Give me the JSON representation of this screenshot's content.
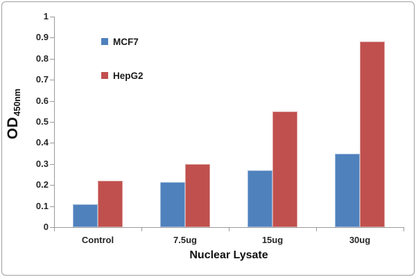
{
  "frame": {
    "background": "#ffffff",
    "border_color": "#9e9e9e"
  },
  "chart_data": {
    "type": "bar",
    "title": "",
    "xlabel": "Nuclear Lysate",
    "ylabel_main": "OD",
    "ylabel_sub": "450nm",
    "categories": [
      "Control",
      "7.5ug",
      "15ug",
      "30ug"
    ],
    "series": [
      {
        "name": "MCF7",
        "color": "#4F81BD",
        "values": [
          0.11,
          0.215,
          0.27,
          0.35
        ]
      },
      {
        "name": "HepG2",
        "color": "#C0504D",
        "values": [
          0.22,
          0.3,
          0.55,
          0.88
        ]
      }
    ],
    "ylim": [
      0,
      1
    ],
    "ytick_step": 0.1,
    "ytick_labels": [
      "0",
      "0.1",
      "0.2",
      "0.3",
      "0.4",
      "0.5",
      "0.6",
      "0.7",
      "0.8",
      "0.9",
      "1"
    ],
    "grid": false,
    "legend_position": "inside-top-left",
    "axis_color": "#9a9a9a"
  }
}
